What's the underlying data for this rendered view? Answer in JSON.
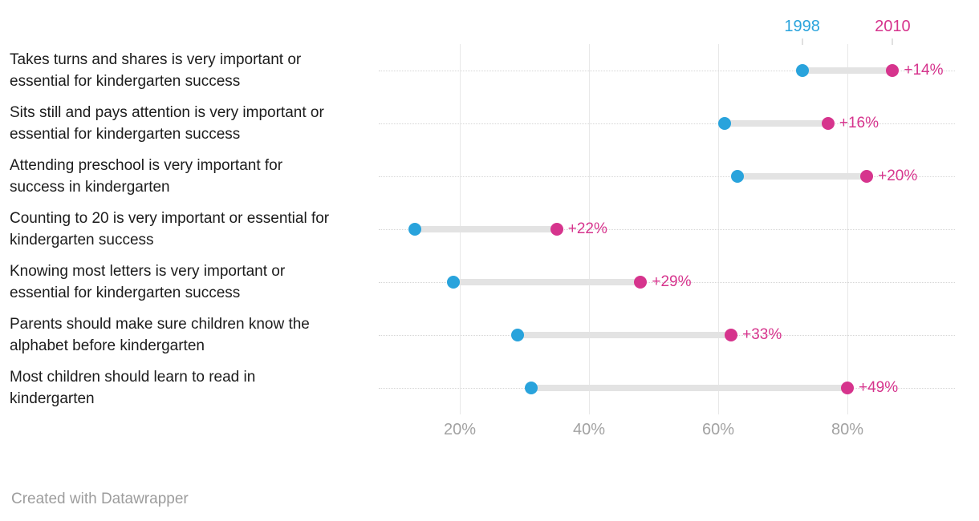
{
  "footer": "Created with Datawrapper",
  "chart_data": {
    "type": "dumbbell",
    "orientation": "horizontal",
    "title": "",
    "categories": [
      "Takes turns and shares is very important or essential for kindergarten success",
      "Sits still and pays attention is very important or essential for kindergarten success",
      "Attending preschool is very important for success in kindergarten",
      "Counting to 20 is very important or essential for kindergarten success",
      "Knowing most letters is very important or essential for kindergarten success",
      "Parents should make sure children know the alphabet before kindergarten",
      "Most children should learn to read in kindergarten"
    ],
    "series": [
      {
        "name": "1998",
        "color": "#29a3dc",
        "values": [
          73,
          61,
          63,
          13,
          19,
          29,
          31
        ]
      },
      {
        "name": "2010",
        "color": "#d6348d",
        "values": [
          87,
          77,
          83,
          35,
          48,
          62,
          80
        ]
      }
    ],
    "change_labels": [
      "+14%",
      "+16%",
      "+20%",
      "+22%",
      "+29%",
      "+33%",
      "+49%"
    ],
    "xlim": [
      0,
      100
    ],
    "x_tick_values": [
      20,
      40,
      60,
      80
    ],
    "x_tick_labels": [
      "20%",
      "40%",
      "60%",
      "80%"
    ],
    "grid": true,
    "legend_position": "top-above-first-row",
    "colors": {
      "connector": "#e3e3e3",
      "gridline": "#e8e8e8",
      "axis_text": "#a2a2a2"
    }
  }
}
